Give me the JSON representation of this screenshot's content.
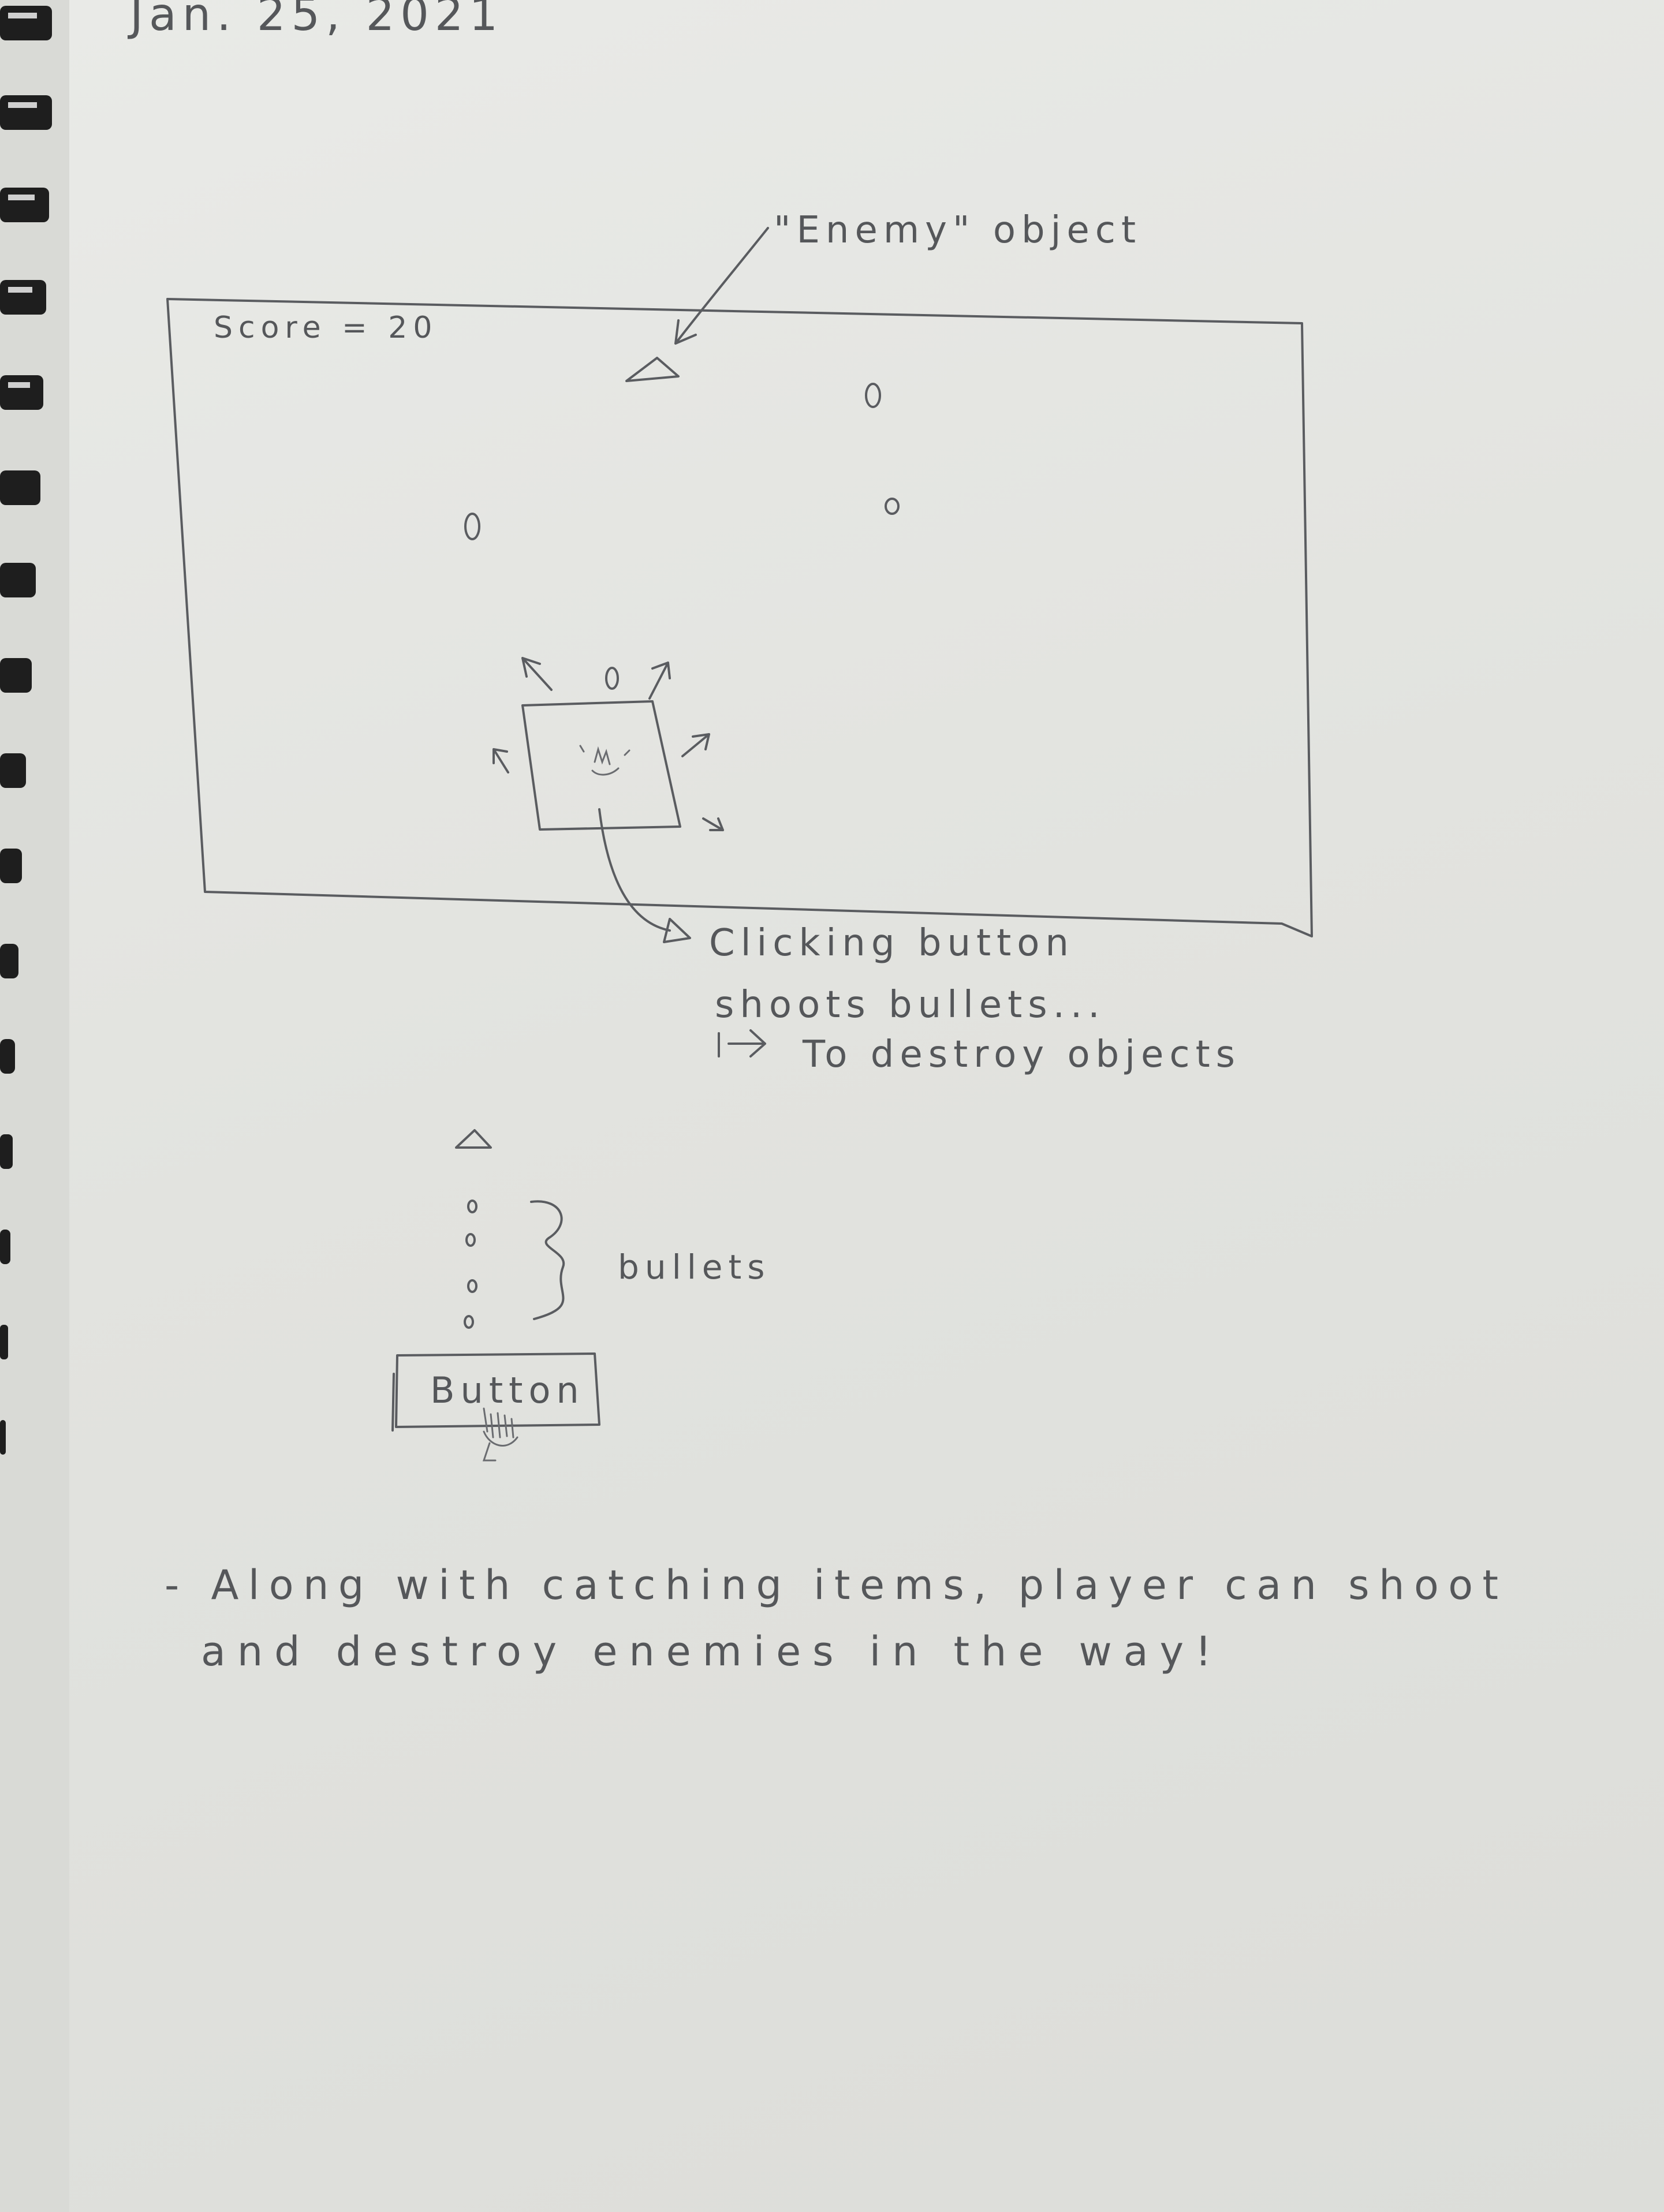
{
  "date": "Jan. 25, 2021",
  "enemy_note": "\"Enemy\" object",
  "game_screen": {
    "score_label": "Score = 20"
  },
  "annotation": {
    "line1": "Clicking button",
    "line2": "shoots bullets...",
    "line3": "To destroy objects"
  },
  "bullets_diagram": {
    "brace_label": "bullets",
    "button_label": "Button"
  },
  "note": {
    "line1": "- Along with catching items, player can shoot",
    "line2": "and destroy enemies in the way!"
  }
}
